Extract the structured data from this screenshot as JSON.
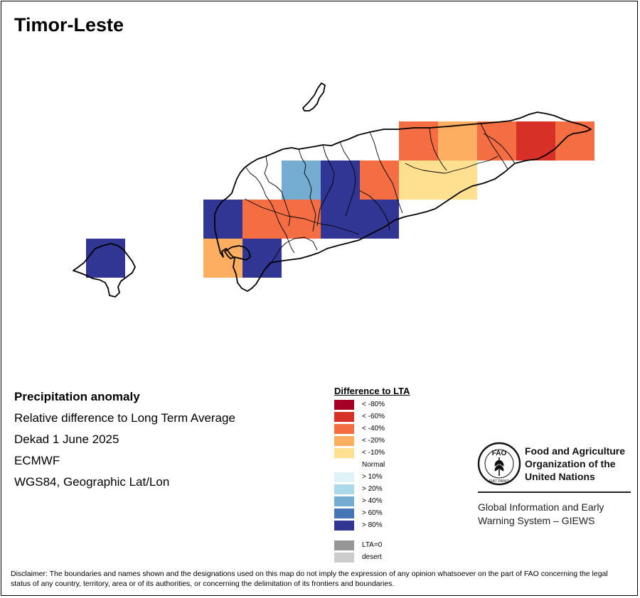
{
  "title": "Timor-Leste",
  "info": {
    "heading": "Precipitation anomaly",
    "subtitle": "Relative difference to Long Term Average",
    "period": "Dekad 1 June 2025",
    "source": "ECMWF",
    "projection": "WGS84, Geographic Lat/Lon"
  },
  "legend": {
    "title": "Difference to LTA",
    "items": [
      {
        "label": "< -80%",
        "color": "#a50026"
      },
      {
        "label": "< -60%",
        "color": "#d73027"
      },
      {
        "label": "< -40%",
        "color": "#f46d43"
      },
      {
        "label": "< -20%",
        "color": "#fdae61"
      },
      {
        "label": "< -10%",
        "color": "#fee090"
      },
      {
        "label": "Normal",
        "color": "#ffffff"
      },
      {
        "label": "> 10%",
        "color": "#e0f3f8"
      },
      {
        "label": "> 20%",
        "color": "#abd9e9"
      },
      {
        "label": "> 40%",
        "color": "#74add1"
      },
      {
        "label": "> 60%",
        "color": "#4575b4"
      },
      {
        "label": "> 80%",
        "color": "#313695"
      }
    ],
    "extra": [
      {
        "label": "LTA=0",
        "color": "#969696"
      },
      {
        "label": "desert",
        "color": "#cccccc"
      }
    ]
  },
  "fao": {
    "logo_letters": "FAO",
    "logo_ring": "FIAT PANIS",
    "name_lines": [
      "Food and Agriculture",
      "Organization of the",
      "United Nations"
    ],
    "giews_lines": [
      "Global Information and Early",
      "Warning System – GIEWS"
    ]
  },
  "disclaimer": "Disclaimer: The boundaries and names shown and the designations used on this map do not imply the expression of any opinion whatsoever on the part of FAO concerning the legal status of any country, territory, area or of its authorities, or concerning the delimitation of its frontiers and boundaries.",
  "map_cells": [
    {
      "col": 0,
      "row": 3,
      "cls": "> 80%"
    },
    {
      "col": 3,
      "row": 2,
      "cls": "> 80%"
    },
    {
      "col": 4,
      "row": 2,
      "cls": "< -40%"
    },
    {
      "col": 3,
      "row": 3,
      "cls": "< -20%"
    },
    {
      "col": 4,
      "row": 3,
      "cls": "> 80%"
    },
    {
      "col": 5,
      "row": 1,
      "cls": "> 40%"
    },
    {
      "col": 6,
      "row": 1,
      "cls": "> 80%"
    },
    {
      "col": 7,
      "row": 1,
      "cls": "< -40%"
    },
    {
      "col": 5,
      "row": 2,
      "cls": "< -40%"
    },
    {
      "col": 6,
      "row": 2,
      "cls": "> 80%"
    },
    {
      "col": 7,
      "row": 2,
      "cls": "> 80%"
    },
    {
      "col": 8,
      "row": 0,
      "cls": "< -40%"
    },
    {
      "col": 9,
      "row": 0,
      "cls": "< -20%"
    },
    {
      "col": 10,
      "row": 0,
      "cls": "< -40%"
    },
    {
      "col": 11,
      "row": 0,
      "cls": "< -60%"
    },
    {
      "col": 12,
      "row": 0,
      "cls": "< -40%"
    },
    {
      "col": 8,
      "row": 1,
      "cls": "< -10%"
    },
    {
      "col": 9,
      "row": 1,
      "cls": "< -10%"
    }
  ]
}
